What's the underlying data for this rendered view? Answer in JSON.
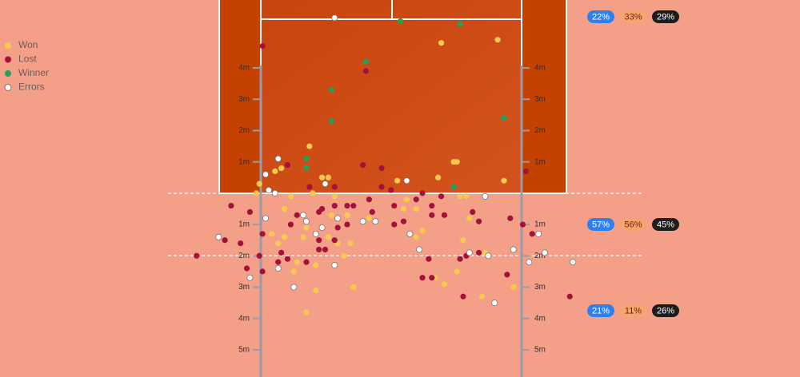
{
  "chart_data": {
    "type": "scatter",
    "xlim": [
      -12.47,
      13.04
    ],
    "ylim": [
      -5.87,
      6.17
    ],
    "yticks": [
      {
        "value": 4,
        "label": "4m"
      },
      {
        "value": 3,
        "label": "3m"
      },
      {
        "value": 2,
        "label": "2m"
      },
      {
        "value": 1,
        "label": "1m"
      },
      {
        "value": -1,
        "label": "1m"
      },
      {
        "value": -2,
        "label": "2m"
      },
      {
        "value": -3,
        "label": "3m"
      },
      {
        "value": -4,
        "label": "4m"
      },
      {
        "value": -5,
        "label": "5m"
      }
    ],
    "legend": "top-left",
    "series": [
      {
        "name": "Won",
        "color": "#f8c94e",
        "x": [
          1.6,
          3.4,
          -2.6,
          -3.7,
          -3.5,
          -4.2,
          -2.2,
          -2.0,
          1.5,
          2.0,
          2.1,
          0.2,
          3.6,
          -2.5,
          -3.2,
          -1.8,
          -3.4,
          -2.7,
          -3.8,
          -3.4,
          -3.6,
          -2.8,
          -2.0,
          -1.7,
          -1.3,
          -1.9,
          -1.4,
          -0.7,
          0.5,
          0.4,
          0.8,
          0.8,
          1.0,
          2.2,
          2.4,
          2.5,
          2.3,
          3.0,
          3.9,
          -1.5,
          -2.4,
          -2.7,
          -2.4,
          -1.2,
          -3.1,
          1.4,
          1.7,
          2.1,
          2.9,
          -4.3,
          -3.0
        ],
        "values": [
          4.8,
          4.9,
          1.5,
          0.7,
          0.8,
          0.3,
          0.5,
          0.5,
          0.5,
          1.0,
          1.0,
          0.4,
          0.4,
          0.0,
          -0.1,
          -0.1,
          -0.5,
          -1.1,
          -1.3,
          -1.4,
          -1.6,
          -1.4,
          -1.4,
          -1.6,
          -1.6,
          -0.7,
          -0.7,
          -0.8,
          -0.2,
          -0.5,
          -0.5,
          -1.4,
          -1.2,
          -0.1,
          -0.1,
          -0.8,
          -1.5,
          -1.9,
          -3.0,
          -2.0,
          -2.3,
          -3.8,
          -3.1,
          -3.0,
          -2.5,
          -2.7,
          -2.9,
          -2.5,
          -3.3,
          0.0,
          -2.2
        ]
      },
      {
        "name": "Lost",
        "color": "#a3123a",
        "x": [
          -4.1,
          -0.8,
          -3.3,
          -0.9,
          -0.3,
          -2.6,
          -1.8,
          -0.3,
          0.0,
          1.0,
          1.6,
          -5.1,
          -4.5,
          -4.1,
          -5.3,
          -4.8,
          -6.2,
          -4.2,
          -4.6,
          -4.1,
          -3.5,
          -3.6,
          -3.3,
          -2.7,
          -2.3,
          -2.1,
          -2.3,
          -1.8,
          -1.4,
          -3.0,
          -3.2,
          -2.3,
          -2.2,
          -1.8,
          -1.2,
          -0.6,
          0.1,
          0.1,
          0.4,
          0.8,
          1.3,
          1.3,
          1.7,
          2.6,
          2.8,
          1.2,
          1.3,
          1.0,
          2.2,
          2.4,
          2.8,
          2.3,
          3.7,
          3.8,
          4.2,
          4.5,
          5.7,
          4.3,
          -1.7,
          -0.7,
          -1.4
        ],
        "values": [
          4.7,
          3.9,
          0.9,
          0.9,
          0.8,
          0.2,
          0.2,
          0.2,
          0.1,
          0.0,
          -0.1,
          -0.4,
          -0.6,
          -1.3,
          -1.5,
          -1.6,
          -2.0,
          -2.0,
          -2.4,
          -2.5,
          -1.9,
          -2.2,
          -2.1,
          -2.2,
          -1.8,
          -1.8,
          -1.5,
          -1.5,
          -1.0,
          -0.7,
          -1.0,
          -0.6,
          -0.5,
          -0.4,
          -0.4,
          -0.6,
          -0.4,
          -1.0,
          -0.9,
          -0.2,
          -0.4,
          -0.7,
          -0.7,
          -0.6,
          -0.9,
          -2.1,
          -2.7,
          -2.7,
          -2.1,
          -2.0,
          -1.9,
          -3.3,
          -2.6,
          -0.8,
          -1.0,
          -1.3,
          -3.3,
          0.7,
          -1.1,
          -0.2,
          -0.4
        ]
      },
      {
        "name": "Winner",
        "color": "#1fa35a",
        "x": [
          0.3,
          2.2,
          -0.8,
          -1.9,
          -1.9,
          3.6,
          -2.7,
          -2.7,
          2.0
        ],
        "values": [
          5.5,
          5.4,
          4.2,
          3.3,
          2.3,
          2.4,
          1.1,
          0.8,
          0.2
        ]
      },
      {
        "name": "Errors",
        "color": "#ffffff",
        "x": [
          -1.8,
          -3.6,
          -4.0,
          -2.1,
          0.5,
          -3.7,
          -3.9,
          -4.0,
          -2.7,
          -2.2,
          -1.7,
          -0.9,
          -0.5,
          -2.4,
          -5.5,
          -4.5,
          -3.6,
          -3.1,
          -1.8,
          0.9,
          0.6,
          2.5,
          3.1,
          3.3,
          3.9,
          4.4,
          4.7,
          4.9,
          5.8,
          3.0,
          -2.8
        ],
        "values": [
          5.6,
          1.1,
          0.6,
          0.3,
          0.4,
          0.0,
          0.1,
          -0.8,
          -0.9,
          -1.1,
          -0.8,
          -0.9,
          -0.9,
          -1.3,
          -1.4,
          -2.7,
          -2.4,
          -3.0,
          -2.3,
          -1.8,
          -1.3,
          -1.9,
          -2.0,
          -3.5,
          -1.8,
          -2.2,
          -1.3,
          -1.9,
          -2.2,
          -0.1,
          -0.7
        ]
      }
    ],
    "zone_colors": [
      "#2f80ed",
      "#f7a46e",
      "#1d1d1d"
    ],
    "zone_text_colors": [
      "#ffffff",
      "#5a2a10",
      "#ffffff"
    ],
    "zones": [
      {
        "values": [
          22,
          33,
          29
        ],
        "value_labels": [
          "22%",
          "33%",
          "29%"
        ]
      },
      {
        "values": [
          57,
          56,
          45
        ],
        "value_labels": [
          "57%",
          "56%",
          "45%"
        ]
      },
      {
        "values": [
          21,
          11,
          26
        ],
        "value_labels": [
          "21%",
          "11%",
          "26%"
        ]
      }
    ]
  }
}
